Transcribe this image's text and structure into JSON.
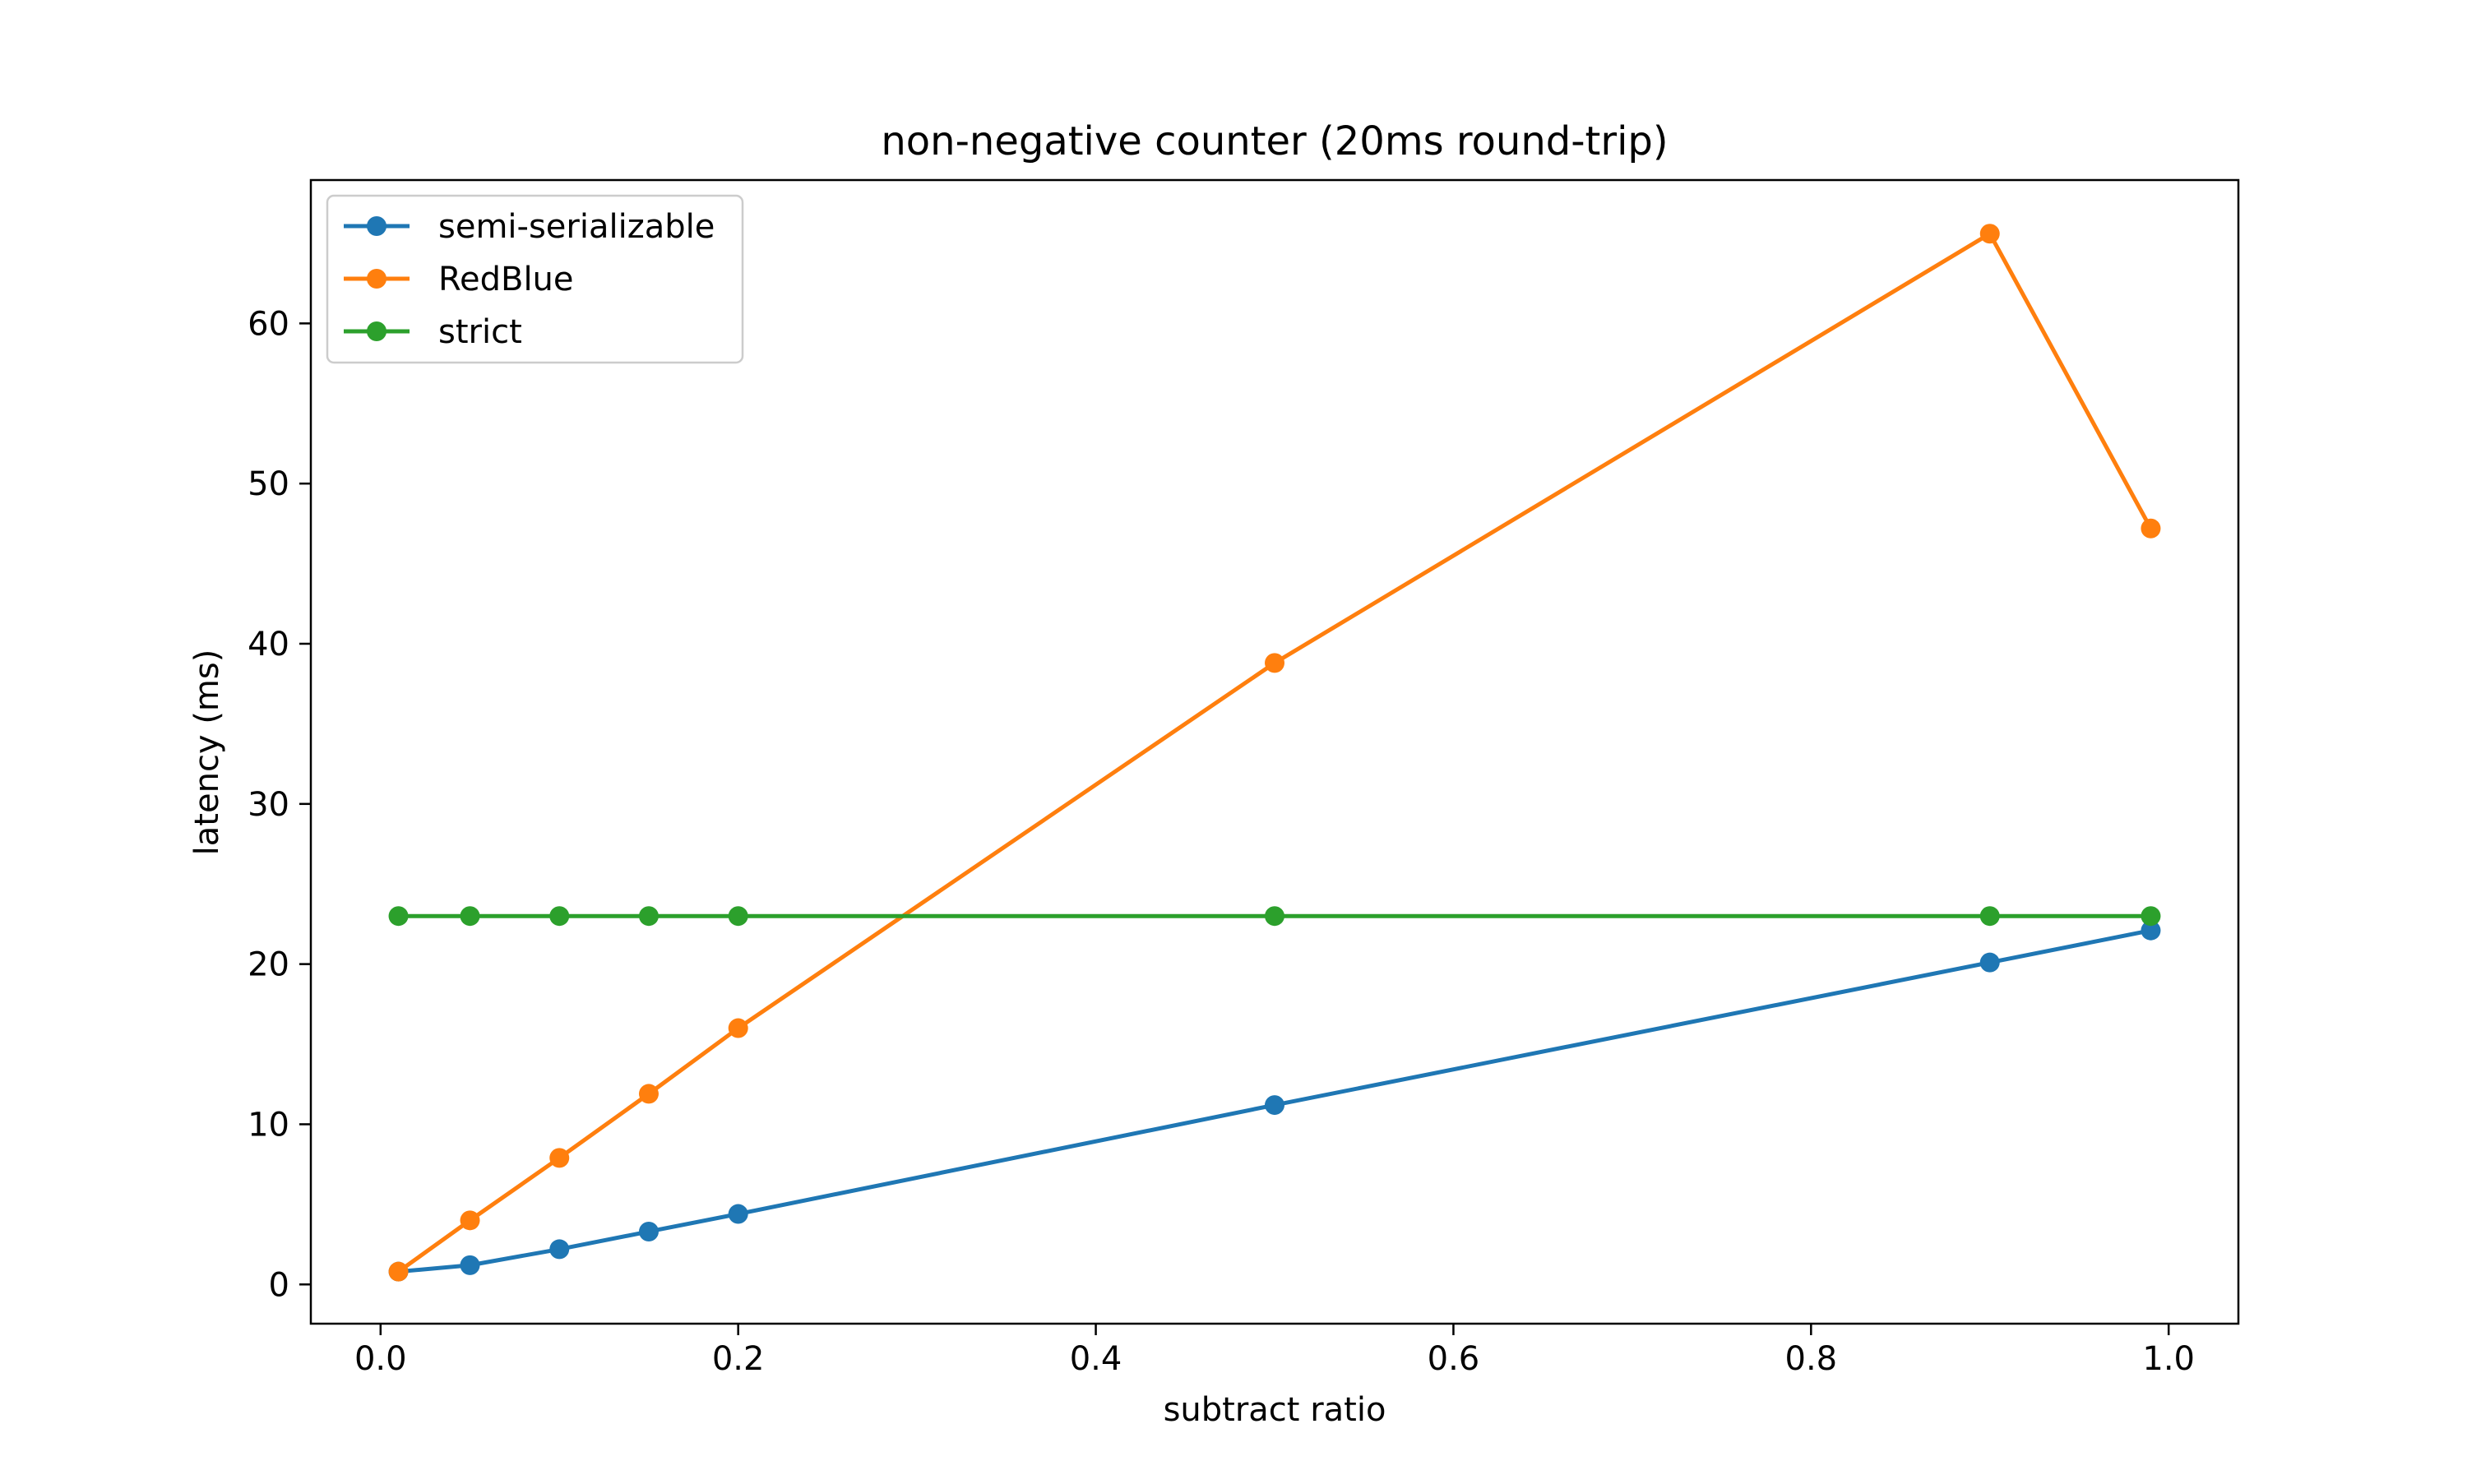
{
  "chart_data": {
    "type": "line",
    "title": "non-negative counter (20ms round-trip)",
    "xlabel": "subtract ratio",
    "ylabel": "latency (ms)",
    "xlim": [
      -0.039,
      1.039
    ],
    "ylim": [
      -2.45,
      68.95
    ],
    "xticks": [
      "0.0",
      "0.2",
      "0.4",
      "0.6",
      "0.8",
      "1.0"
    ],
    "yticks": [
      "0",
      "10",
      "20",
      "30",
      "40",
      "50",
      "60"
    ],
    "xtick_values": [
      0.0,
      0.2,
      0.4,
      0.6,
      0.8,
      1.0
    ],
    "ytick_values": [
      0,
      10,
      20,
      30,
      40,
      50,
      60
    ],
    "x": [
      0.01,
      0.05,
      0.1,
      0.15,
      0.2,
      0.5,
      0.9,
      0.99
    ],
    "grid": false,
    "legend_position": "top-left",
    "series": [
      {
        "name": "semi-serializable",
        "color": "#1f77b4",
        "values": [
          0.8,
          1.2,
          2.2,
          3.3,
          4.4,
          11.2,
          20.1,
          22.1
        ]
      },
      {
        "name": "RedBlue",
        "color": "#ff7f0e",
        "values": [
          0.8,
          4.0,
          7.9,
          11.9,
          16.0,
          38.8,
          65.6,
          47.2
        ]
      },
      {
        "name": "strict",
        "color": "#2ca02c",
        "values": [
          23.0,
          23.0,
          23.0,
          23.0,
          23.0,
          23.0,
          23.0,
          23.0
        ]
      }
    ]
  }
}
